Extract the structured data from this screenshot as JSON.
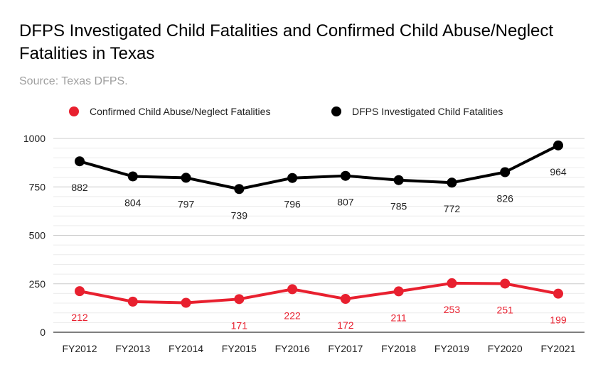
{
  "chart_data": {
    "type": "line",
    "title": "DFPS Investigated Child Fatalities and Confirmed Child Abuse/Neglect Fatalities in Texas",
    "subtitle": "Source: Texas DFPS.",
    "categories": [
      "FY2012",
      "FY2013",
      "FY2014",
      "FY2015",
      "FY2016",
      "FY2017",
      "FY2018",
      "FY2019",
      "FY2020",
      "FY2021"
    ],
    "ylim": [
      0,
      1000
    ],
    "yticks": [
      0,
      250,
      500,
      750,
      1000
    ],
    "grid": true,
    "legend_position": "top",
    "series": [
      {
        "name": "Confirmed Child Abuse/Neglect Fatalities",
        "color": "#e8202f",
        "values": [
          212,
          158,
          152,
          171,
          222,
          172,
          211,
          253,
          251,
          199
        ],
        "labels": [
          "212",
          "",
          "",
          "171",
          "222",
          "172",
          "211",
          "253",
          "251",
          "199"
        ],
        "label_side": "below"
      },
      {
        "name": "DFPS Investigated Child Fatalities",
        "color": "#000000",
        "values": [
          882,
          804,
          797,
          739,
          796,
          807,
          785,
          772,
          826,
          964
        ],
        "labels": [
          "882",
          "804",
          "797",
          "739",
          "796",
          "807",
          "785",
          "772",
          "826",
          "964"
        ],
        "label_side": "below"
      }
    ]
  }
}
